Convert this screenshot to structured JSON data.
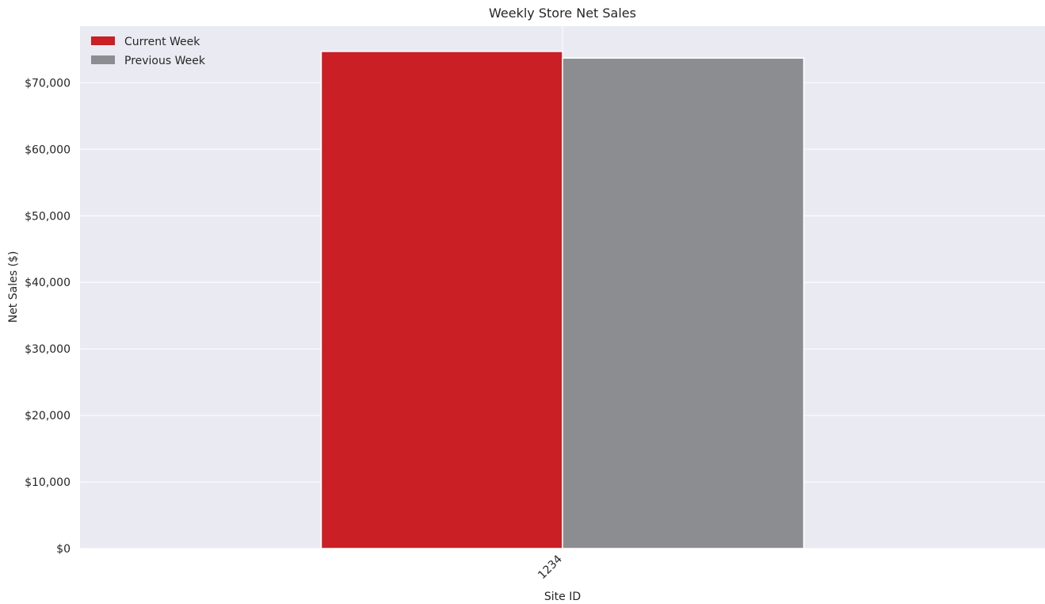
{
  "chart_data": {
    "type": "bar",
    "title": "Weekly Store Net Sales",
    "xlabel": "Site ID",
    "ylabel": "Net Sales ($)",
    "categories": [
      "1234"
    ],
    "series": [
      {
        "name": "Current Week",
        "color": "#c91f25",
        "values": [
          74700
        ]
      },
      {
        "name": "Previous Week",
        "color": "#8c8d91",
        "values": [
          73700
        ]
      }
    ],
    "ylim": [
      0,
      78500
    ],
    "yticks": [
      0,
      10000,
      20000,
      30000,
      40000,
      50000,
      60000,
      70000
    ],
    "ytick_labels": [
      "$0",
      "$10,000",
      "$20,000",
      "$30,000",
      "$40,000",
      "$50,000",
      "$60,000",
      "$70,000"
    ],
    "grid": true,
    "legend_position": "top-left",
    "colors": {
      "background": "#eaeaf2",
      "grid": "#ffffff"
    }
  }
}
